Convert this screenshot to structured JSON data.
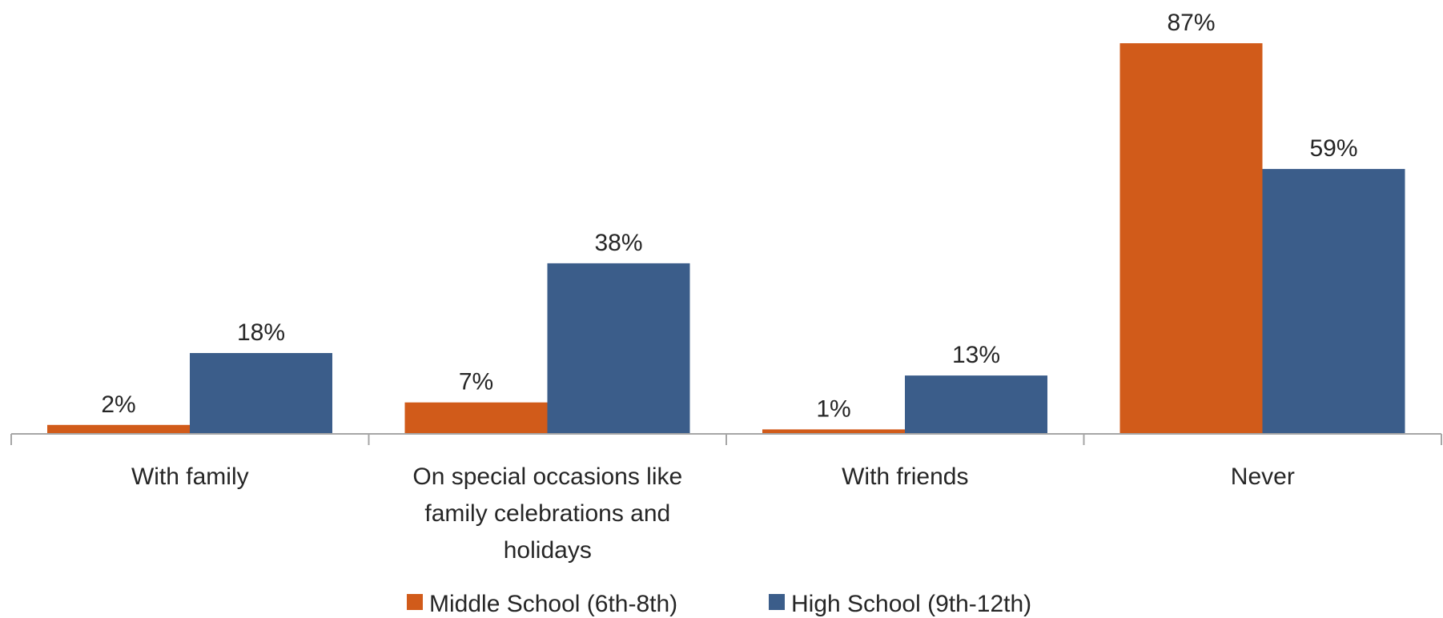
{
  "chart_data": {
    "type": "bar",
    "categories": [
      "With family",
      "On special occasions like family celebrations and holidays",
      "With friends",
      "Never"
    ],
    "category_lines": [
      [
        "With family"
      ],
      [
        "On special occasions like",
        "family celebrations and",
        "holidays"
      ],
      [
        "With friends"
      ],
      [
        "Never"
      ]
    ],
    "series": [
      {
        "name": "Middle School (6th-8th)",
        "values": [
          2,
          7,
          1,
          87
        ],
        "labels": [
          "2%",
          "7%",
          "1%",
          "87%"
        ]
      },
      {
        "name": "High School (9th-12th)",
        "values": [
          18,
          38,
          13,
          59
        ],
        "labels": [
          "18%",
          "38%",
          "13%",
          "59%"
        ]
      }
    ],
    "ylim": [
      0,
      87
    ],
    "grid": false,
    "legend_position": "bottom",
    "colors": {
      "middle_school": "#D15B1A",
      "high_school": "#3B5D8A",
      "axis": "#A6A6A6",
      "text": "#262626"
    }
  }
}
